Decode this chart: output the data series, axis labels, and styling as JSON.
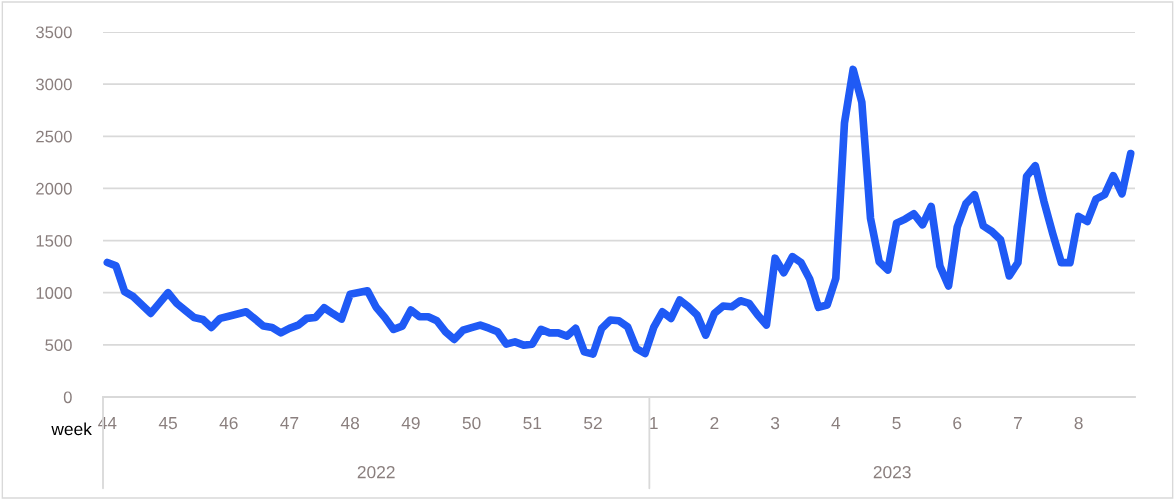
{
  "chart_data": {
    "type": "line",
    "xlabel": "week",
    "categories": [
      "44",
      null,
      null,
      null,
      null,
      null,
      null,
      "45",
      null,
      null,
      null,
      null,
      null,
      null,
      "46",
      null,
      null,
      null,
      null,
      null,
      null,
      "47",
      null,
      null,
      null,
      null,
      null,
      null,
      "48",
      null,
      null,
      null,
      null,
      null,
      null,
      "49",
      null,
      null,
      null,
      null,
      null,
      null,
      "50",
      null,
      null,
      null,
      null,
      null,
      null,
      "51",
      null,
      null,
      null,
      null,
      null,
      null,
      "52",
      null,
      null,
      null,
      null,
      null,
      null,
      "1",
      null,
      null,
      null,
      null,
      null,
      null,
      "2",
      null,
      null,
      null,
      null,
      null,
      null,
      "3",
      null,
      null,
      null,
      null,
      null,
      null,
      "4",
      null,
      null,
      null,
      null,
      null,
      null,
      "5",
      null,
      null,
      null,
      null,
      null,
      null,
      "6",
      null,
      null,
      null,
      null,
      null,
      null,
      "7",
      null,
      null,
      null,
      null,
      null,
      null,
      "8",
      null,
      null,
      null,
      null,
      null,
      null
    ],
    "series": [
      {
        "color": "#1f5af5",
        "values": [
          1290,
          1257,
          1010,
          962,
          882,
          802,
          900,
          1000,
          898,
          830,
          763,
          744,
          667,
          754,
          775,
          796,
          817,
          750,
          680,
          667,
          615,
          658,
          689,
          754,
          763,
          856,
          800,
          747,
          985,
          1002,
          1019,
          860,
          763,
          648,
          680,
          834,
          769,
          769,
          731,
          625,
          552,
          640,
          665,
          690,
          660,
          625,
          507,
          529,
          497,
          507,
          648,
          615,
          615,
          584,
          658,
          433,
          411,
          658,
          738,
          731,
          673,
          465,
          417,
          667,
          817,
          754,
          930,
          865,
          786,
          593,
          802,
          872,
          865,
          923,
          898,
          786,
          690,
          1331,
          1192,
          1346,
          1288,
          1129,
          860,
          882,
          1138,
          2629,
          3141,
          2827,
          1715,
          1298,
          1218,
          1667,
          1706,
          1757,
          1651,
          1827,
          1257,
          1065,
          1629,
          1853,
          1940,
          1641,
          1587,
          1507,
          1161,
          1288,
          2115,
          2218,
          1875,
          1571,
          1288,
          1288,
          1731,
          1683,
          1898,
          1940,
          2122,
          1949,
          2334
        ]
      }
    ],
    "ylim": [
      0,
      3500
    ],
    "yticks": [
      0,
      500,
      1000,
      1500,
      2000,
      2500,
      3000,
      3500
    ],
    "grid": "y",
    "legend": false,
    "marker": "none",
    "line_style": "solid",
    "annotations": [
      "2022",
      "2023"
    ]
  }
}
